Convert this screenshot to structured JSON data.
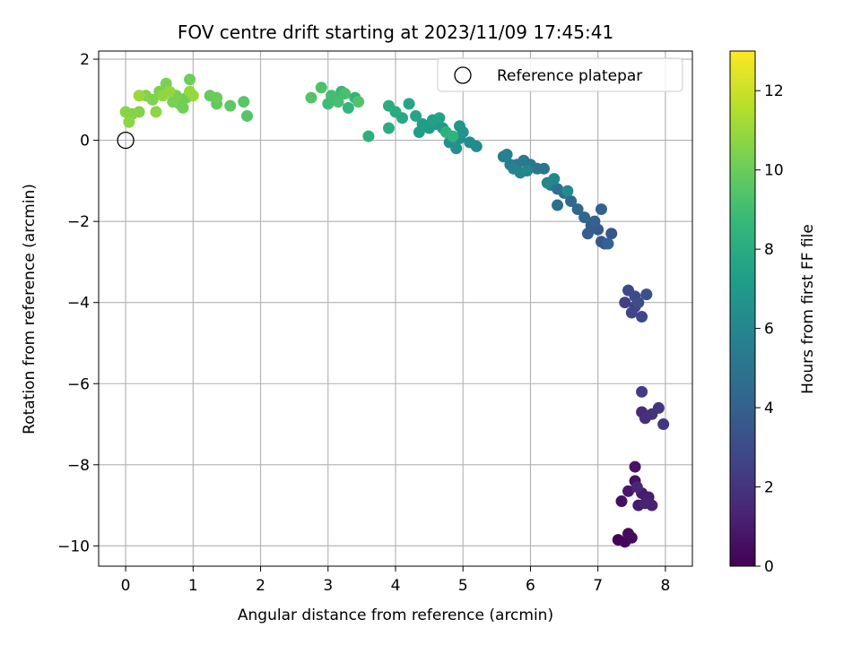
{
  "chart_data": {
    "type": "scatter",
    "title": "FOV centre drift starting at 2023/11/09 17:45:41",
    "xlabel": "Angular distance from reference (arcmin)",
    "ylabel": "Rotation from reference (arcmin)",
    "xlim": [
      -0.4,
      8.4
    ],
    "ylim": [
      -10.5,
      2.2
    ],
    "xticks": [
      0,
      1,
      2,
      3,
      4,
      5,
      6,
      7,
      8
    ],
    "yticks": [
      2,
      0,
      -2,
      -4,
      -6,
      -8,
      -10
    ],
    "xtick_labels": [
      "0",
      "1",
      "2",
      "3",
      "4",
      "5",
      "6",
      "7",
      "8"
    ],
    "ytick_labels": [
      "2",
      "0",
      "−2",
      "−4",
      "−6",
      "−8",
      "−10"
    ],
    "grid": true,
    "colormap": "viridis",
    "colorbar": {
      "label": "Hours from first FF file",
      "range": [
        0,
        13
      ],
      "ticks": [
        0,
        2,
        4,
        6,
        8,
        10,
        12
      ],
      "tick_labels": [
        "0",
        "2",
        "4",
        "6",
        "8",
        "10",
        "12"
      ]
    },
    "legend": {
      "placement": "top-right",
      "entries": [
        "Reference platepar"
      ]
    },
    "reference_point": {
      "x": 0,
      "y": 0
    },
    "points": [
      [
        7.3,
        -9.85,
        0.1
      ],
      [
        7.4,
        -9.9,
        0.2
      ],
      [
        7.5,
        -9.8,
        0.3
      ],
      [
        7.45,
        -9.7,
        0.4
      ],
      [
        7.35,
        -8.9,
        0.5
      ],
      [
        7.55,
        -8.4,
        0.6
      ],
      [
        7.55,
        -8.05,
        0.7
      ],
      [
        7.45,
        -8.65,
        0.8
      ],
      [
        7.6,
        -9.0,
        0.9
      ],
      [
        7.65,
        -8.7,
        1.0
      ],
      [
        7.75,
        -8.8,
        1.1
      ],
      [
        7.8,
        -9.0,
        1.2
      ],
      [
        7.7,
        -8.95,
        1.3
      ],
      [
        7.58,
        -8.55,
        1.4
      ],
      [
        7.65,
        -6.7,
        1.6
      ],
      [
        7.7,
        -6.85,
        1.8
      ],
      [
        7.8,
        -6.75,
        1.9
      ],
      [
        7.9,
        -6.6,
        2.0
      ],
      [
        7.97,
        -7.0,
        2.1
      ],
      [
        7.65,
        -6.2,
        2.3
      ],
      [
        7.4,
        -4.0,
        2.5
      ],
      [
        7.55,
        -4.1,
        2.6
      ],
      [
        7.5,
        -4.25,
        2.7
      ],
      [
        7.65,
        -4.35,
        2.8
      ],
      [
        7.45,
        -3.7,
        2.9
      ],
      [
        7.55,
        -3.85,
        3.0
      ],
      [
        7.6,
        -4.0,
        3.1
      ],
      [
        7.72,
        -3.8,
        3.2
      ],
      [
        7.1,
        -2.55,
        3.4
      ],
      [
        7.2,
        -2.3,
        3.5
      ],
      [
        7.05,
        -2.5,
        3.6
      ],
      [
        7.0,
        -2.2,
        3.7
      ],
      [
        6.9,
        -2.1,
        3.8
      ],
      [
        6.85,
        -2.3,
        3.9
      ],
      [
        6.95,
        -2.0,
        4.0
      ],
      [
        7.05,
        -1.7,
        4.1
      ],
      [
        7.15,
        -2.55,
        4.2
      ],
      [
        6.8,
        -1.9,
        4.3
      ],
      [
        6.7,
        -1.7,
        4.4
      ],
      [
        6.6,
        -1.5,
        4.5
      ],
      [
        6.5,
        -1.3,
        4.6
      ],
      [
        6.4,
        -1.2,
        4.7
      ],
      [
        6.4,
        -1.6,
        4.8
      ],
      [
        6.3,
        -1.1,
        4.9
      ],
      [
        6.2,
        -0.7,
        5.0
      ],
      [
        6.1,
        -0.7,
        5.1
      ],
      [
        6.0,
        -0.6,
        5.2
      ],
      [
        5.9,
        -0.5,
        5.3
      ],
      [
        5.8,
        -0.6,
        5.4
      ],
      [
        5.7,
        -0.6,
        5.5
      ],
      [
        5.6,
        -0.4,
        5.6
      ],
      [
        5.65,
        -0.35,
        5.7
      ],
      [
        5.75,
        -0.7,
        5.8
      ],
      [
        5.85,
        -0.8,
        5.9
      ],
      [
        5.95,
        -0.75,
        6.0
      ],
      [
        6.35,
        -0.95,
        6.05
      ],
      [
        6.25,
        -1.05,
        6.1
      ],
      [
        6.55,
        -1.25,
        6.15
      ],
      [
        5.2,
        -0.15,
        6.2
      ],
      [
        5.1,
        -0.05,
        6.3
      ],
      [
        4.95,
        0.05,
        6.4
      ],
      [
        4.9,
        -0.2,
        6.5
      ],
      [
        4.8,
        -0.05,
        6.6
      ],
      [
        5.0,
        0.2,
        6.7
      ],
      [
        4.95,
        0.35,
        6.8
      ],
      [
        4.7,
        0.3,
        6.9
      ],
      [
        4.6,
        0.4,
        7.0
      ],
      [
        4.5,
        0.3,
        7.1
      ],
      [
        4.4,
        0.4,
        7.2
      ],
      [
        4.35,
        0.2,
        7.3
      ],
      [
        4.55,
        0.5,
        7.4
      ],
      [
        4.65,
        0.55,
        7.5
      ],
      [
        4.3,
        0.6,
        7.6
      ],
      [
        4.2,
        0.9,
        7.7
      ],
      [
        4.1,
        0.55,
        7.8
      ],
      [
        4.0,
        0.7,
        7.9
      ],
      [
        3.9,
        0.85,
        8.0
      ],
      [
        3.9,
        0.3,
        8.1
      ],
      [
        3.6,
        0.1,
        8.2
      ],
      [
        4.75,
        0.2,
        8.3
      ],
      [
        4.85,
        0.1,
        8.4
      ],
      [
        3.4,
        1.05,
        8.5
      ],
      [
        3.3,
        0.8,
        8.6
      ],
      [
        3.2,
        1.2,
        8.7
      ],
      [
        3.1,
        1.0,
        8.8
      ],
      [
        3.0,
        0.9,
        8.9
      ],
      [
        3.05,
        1.1,
        9.0
      ],
      [
        3.15,
        0.95,
        9.1
      ],
      [
        3.25,
        1.15,
        9.2
      ],
      [
        2.9,
        1.3,
        9.3
      ],
      [
        2.75,
        1.05,
        9.4
      ],
      [
        3.45,
        0.95,
        9.45
      ],
      [
        1.8,
        0.6,
        9.5
      ],
      [
        1.75,
        0.95,
        9.6
      ],
      [
        1.55,
        0.85,
        9.7
      ],
      [
        1.35,
        0.9,
        9.8
      ],
      [
        1.25,
        1.1,
        9.9
      ],
      [
        1.35,
        1.05,
        10.0
      ],
      [
        0.95,
        1.5,
        10.05
      ],
      [
        0.9,
        1.05,
        10.1
      ],
      [
        0.8,
        0.9,
        10.15
      ],
      [
        0.85,
        0.8,
        10.2
      ],
      [
        0.75,
        1.1,
        10.25
      ],
      [
        0.7,
        0.95,
        10.3
      ],
      [
        0.6,
        1.4,
        10.35
      ],
      [
        0.5,
        1.2,
        10.4
      ],
      [
        0.4,
        1.0,
        10.45
      ],
      [
        0.3,
        1.1,
        10.5
      ],
      [
        0.2,
        0.7,
        10.55
      ],
      [
        0.1,
        0.65,
        10.6
      ],
      [
        0.0,
        0.7,
        10.65
      ],
      [
        0.05,
        0.45,
        10.7
      ],
      [
        0.45,
        0.7,
        10.75
      ],
      [
        0.55,
        1.1,
        10.8
      ],
      [
        0.65,
        1.2,
        10.85
      ],
      [
        0.95,
        1.2,
        10.9
      ],
      [
        1.0,
        1.1,
        10.95
      ],
      [
        0.2,
        1.1,
        11.0
      ]
    ]
  }
}
